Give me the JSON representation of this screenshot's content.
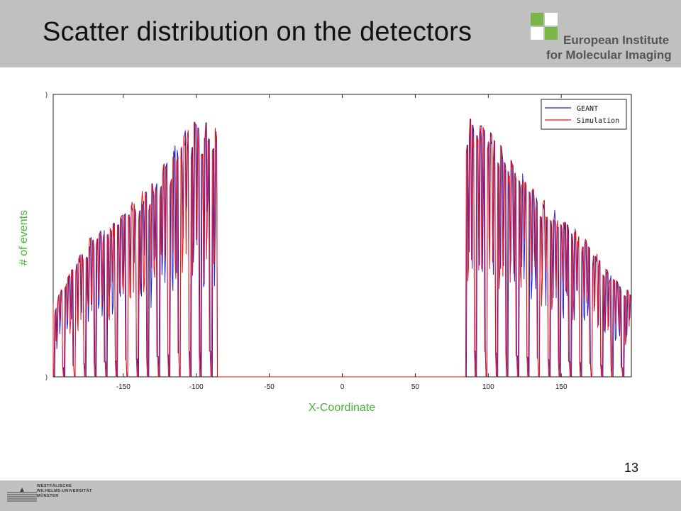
{
  "header": {
    "title": "Scatter distribution on the detectors",
    "logo": {
      "line1": "European Institute",
      "line2": "for Molecular Imaging",
      "colors": {
        "green": "#7ab547",
        "white": "#ffffff"
      }
    }
  },
  "footer": {
    "page_number": "13",
    "university": {
      "line1": "Westfälische",
      "line2": "Wilhelms-Universität",
      "line3": "Münster"
    }
  },
  "chart_data": {
    "type": "line",
    "xlabel": "X-Coordinate",
    "ylabel": "# of events",
    "xlim": [
      -198,
      198
    ],
    "ylim": [
      0,
      1
    ],
    "xticks": [
      -150,
      -100,
      -50,
      0,
      50,
      100,
      150
    ],
    "xtick_labels": [
      "-150",
      "-100",
      "-50",
      "0",
      "50",
      "100",
      "150"
    ],
    "yticks": [
      0,
      1
    ],
    "ytick_labels": [
      ")",
      ")"
    ],
    "grid": false,
    "legend": "top-right",
    "left_region": [
      -198,
      -86
    ],
    "right_region": [
      84,
      198
    ],
    "left_envelope": [
      [
        -198,
        0.24
      ],
      [
        -190,
        0.35
      ],
      [
        -180,
        0.44
      ],
      [
        -172,
        0.5
      ],
      [
        -158,
        0.55
      ],
      [
        -145,
        0.62
      ],
      [
        -130,
        0.69
      ],
      [
        -116,
        0.81
      ],
      [
        -106,
        0.9
      ],
      [
        -98,
        0.91
      ],
      [
        -88,
        0.91
      ]
    ],
    "right_envelope": [
      [
        85,
        0.92
      ],
      [
        95,
        0.92
      ],
      [
        105,
        0.85
      ],
      [
        120,
        0.74
      ],
      [
        135,
        0.65
      ],
      [
        150,
        0.57
      ],
      [
        165,
        0.5
      ],
      [
        180,
        0.4
      ],
      [
        190,
        0.34
      ],
      [
        198,
        0.3
      ]
    ],
    "series": [
      {
        "name": "GEANT",
        "color": "#2222cc"
      },
      {
        "name": "Simulation",
        "color": "#ee1111"
      }
    ]
  }
}
